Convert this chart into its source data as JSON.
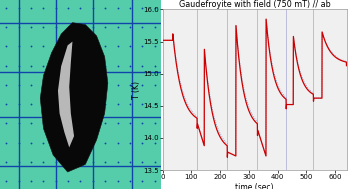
{
  "title": "Gaudefroyite with field (750 mT) // ab",
  "xlabel": "time (sec)",
  "ylabel": "T (K)",
  "xlim": [
    0,
    640
  ],
  "ylim": [
    13.5,
    16.0
  ],
  "yticks": [
    13.5,
    14.0,
    14.5,
    15.0,
    15.5,
    16.0
  ],
  "xticks": [
    0,
    100,
    200,
    300,
    400,
    500,
    600
  ],
  "bg_color": "#f0f0f0",
  "grid_color": "#44aacc",
  "grid_dot_color": "#225599",
  "cycle_params": [
    {
      "t_on": 35,
      "t_off": 120,
      "T_before": 15.52,
      "T_peak": 15.62,
      "T_after": 14.22
    },
    {
      "t_on": 145,
      "t_off": 225,
      "T_before": 13.88,
      "T_peak": 15.38,
      "T_after": 13.78
    },
    {
      "t_on": 255,
      "t_off": 330,
      "T_before": 13.72,
      "T_peak": 15.75,
      "T_after": 14.12
    },
    {
      "t_on": 360,
      "t_off": 430,
      "T_before": 13.72,
      "T_peak": 15.85,
      "T_after": 14.52
    },
    {
      "t_on": 455,
      "t_off": 525,
      "T_before": 14.52,
      "T_peak": 15.58,
      "T_after": 14.62
    },
    {
      "t_on": 555,
      "t_off": 640,
      "T_before": 14.62,
      "T_peak": 15.65,
      "T_after": 15.15
    }
  ],
  "red_color": "#cc0000",
  "blue_color": "#8888cc"
}
